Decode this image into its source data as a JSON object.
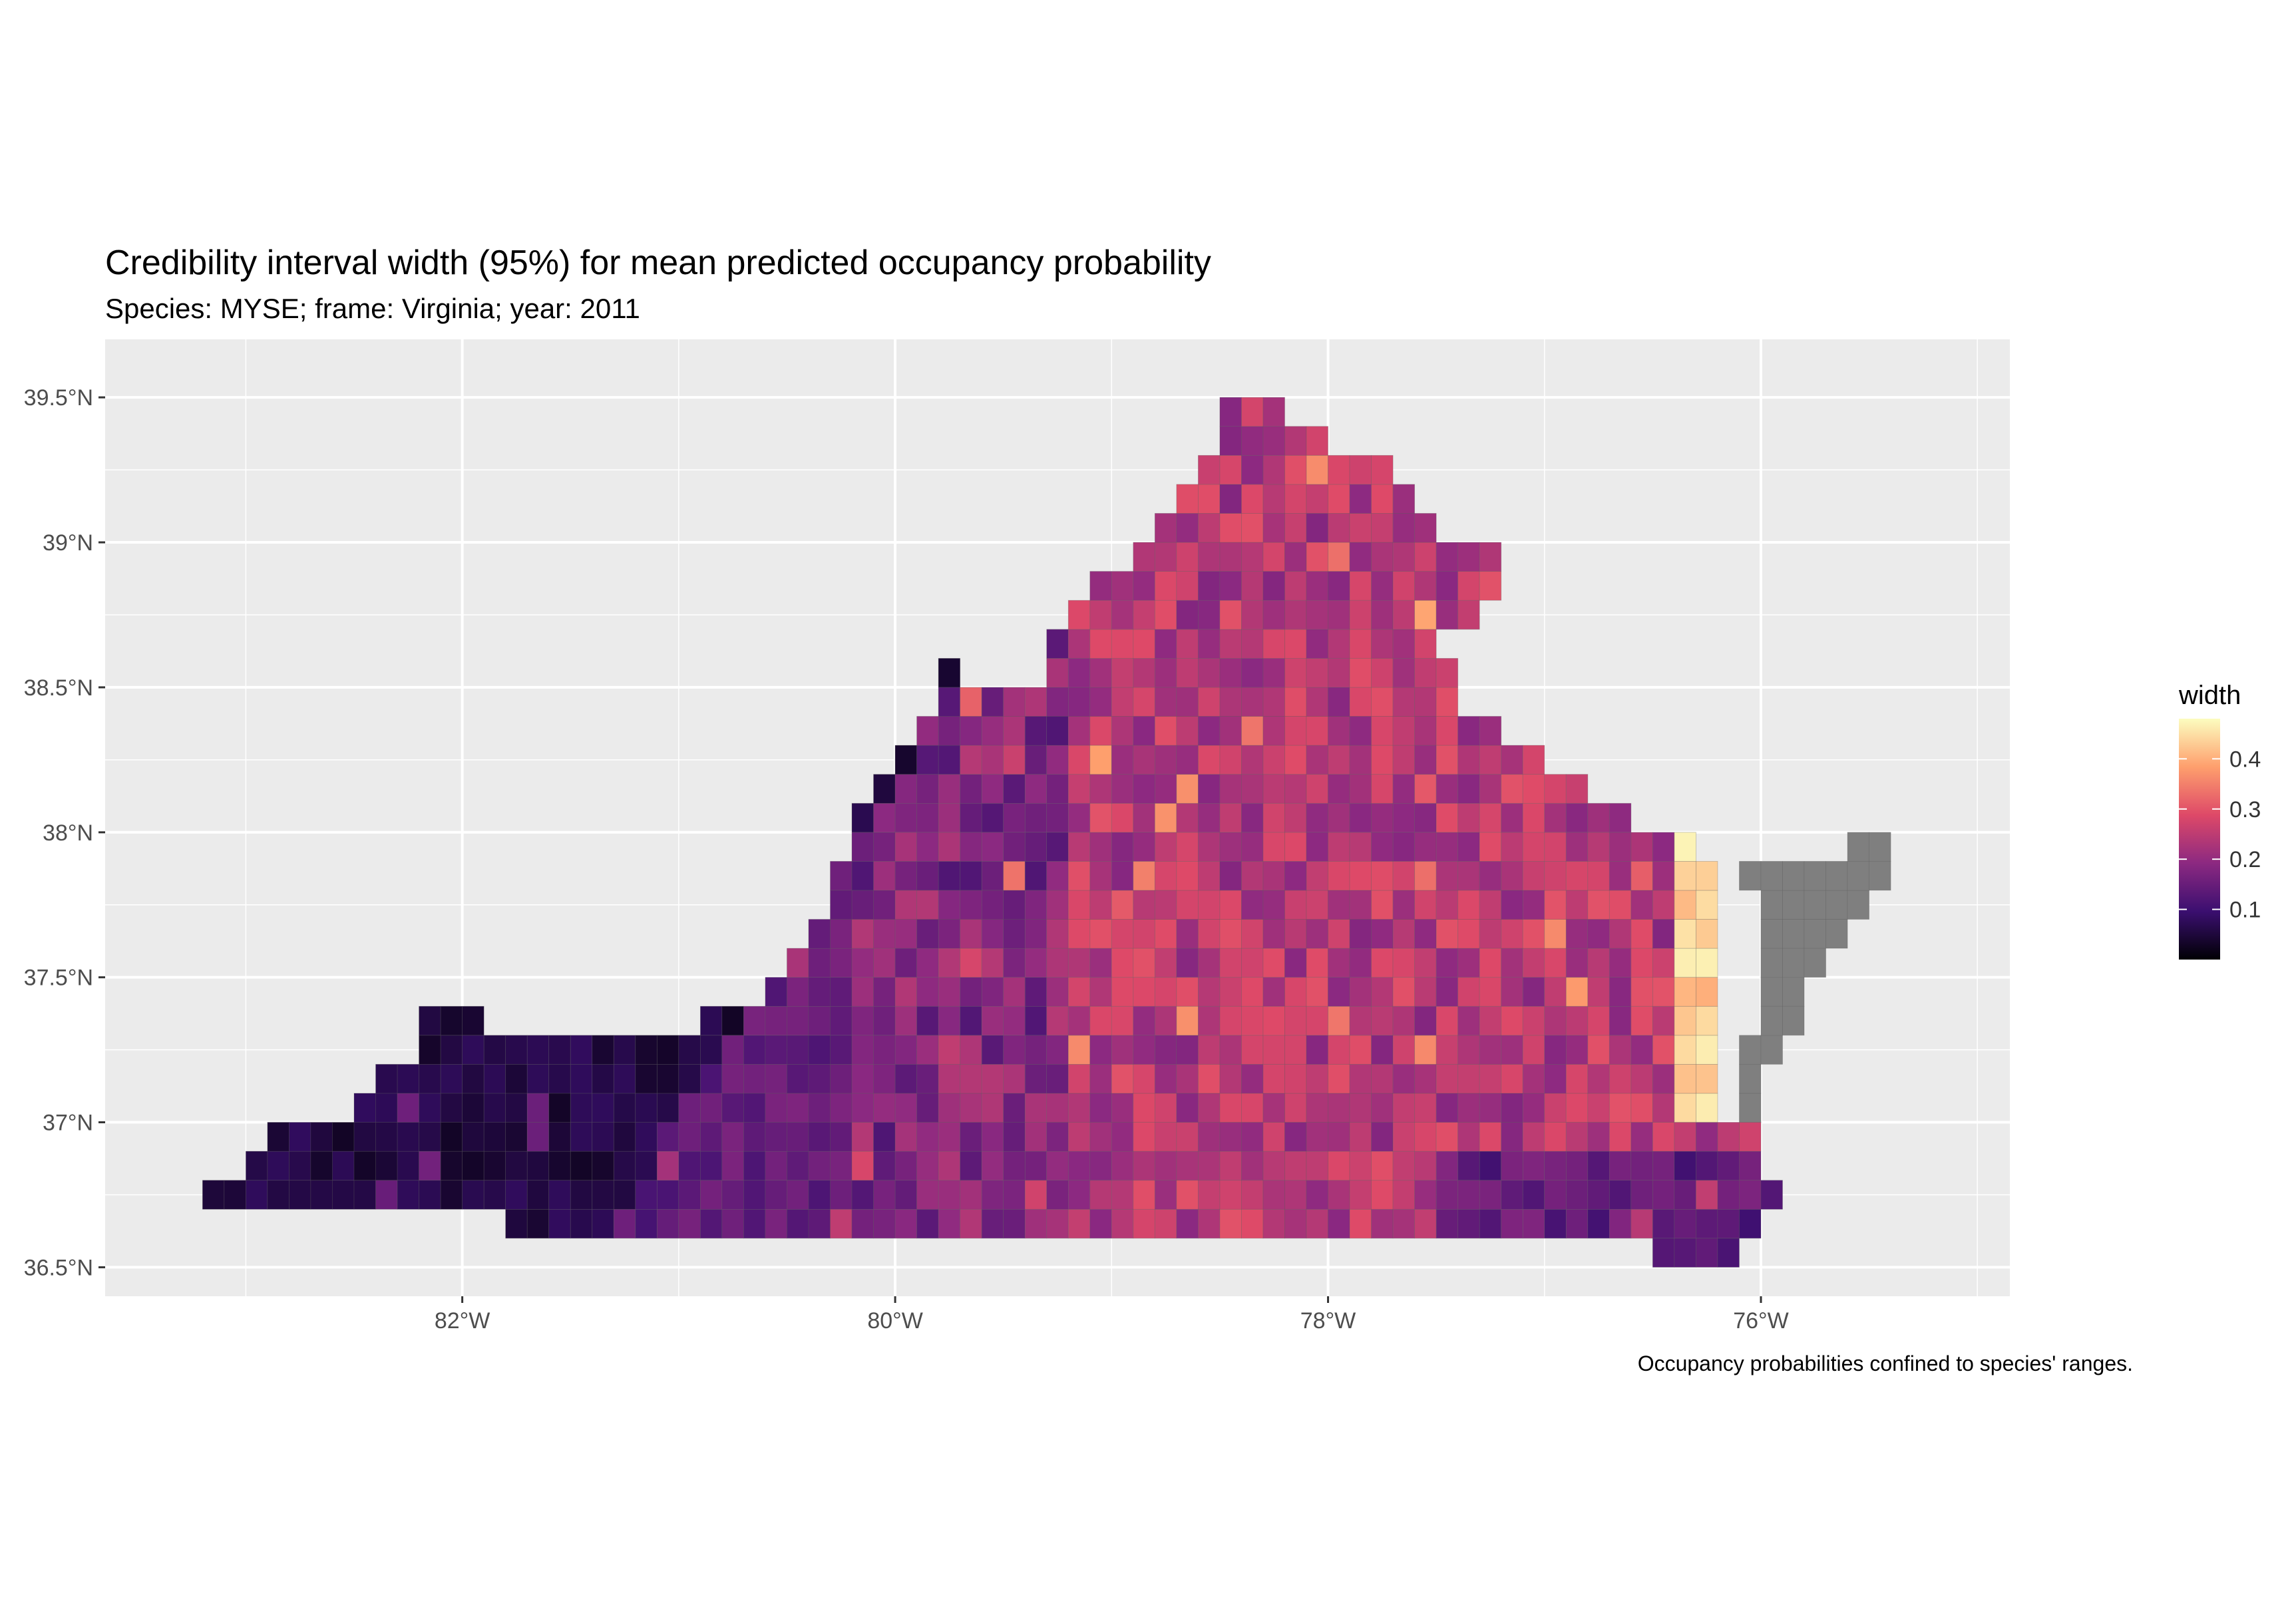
{
  "map": {
    "title": "Credibility interval width (95%) for mean predicted occupancy probability",
    "subtitle": "Species: MYSE; frame: Virginia; year: 2011",
    "caption": "Occupancy probabilities confined to species' ranges.",
    "x_ticks": [
      {
        "value": -82,
        "label": "82°W"
      },
      {
        "value": -80,
        "label": "80°W"
      },
      {
        "value": -78,
        "label": "78°W"
      },
      {
        "value": -76,
        "label": "76°W"
      }
    ],
    "y_ticks": [
      {
        "value": 39.5,
        "label": "39.5°N"
      },
      {
        "value": 39.0,
        "label": "39°N"
      },
      {
        "value": 38.5,
        "label": "38.5°N"
      },
      {
        "value": 38.0,
        "label": "38°N"
      },
      {
        "value": 37.5,
        "label": "37.5°N"
      },
      {
        "value": 37.0,
        "label": "37°N"
      },
      {
        "value": 36.5,
        "label": "36.5°N"
      }
    ],
    "xlim": [
      -83.65,
      -74.85
    ],
    "ylim": [
      36.4,
      39.7
    ],
    "panel_color": "#ebebeb",
    "grid_color": "#ffffff",
    "na_color": "#7f7f7f"
  },
  "legend": {
    "title": "width",
    "ticks": [
      {
        "value": 0.1,
        "label": "0.1"
      },
      {
        "value": 0.2,
        "label": "0.2"
      },
      {
        "value": 0.3,
        "label": "0.3"
      },
      {
        "value": 0.4,
        "label": "0.4"
      }
    ],
    "range": [
      0.0,
      0.48
    ],
    "palette": "magma",
    "colors": [
      "#000004",
      "#3b0f70",
      "#8c2981",
      "#de4968",
      "#fe9f6d",
      "#fcfdbf"
    ]
  },
  "chart_data": {
    "type": "heatmap",
    "cell_size_deg": [
      0.1,
      0.1
    ],
    "value_label": "width",
    "outline_lonlat": [
      [
        -83.35,
        36.65
      ],
      [
        -82.8,
        36.7
      ],
      [
        -82.2,
        36.7
      ],
      [
        -81.6,
        36.62
      ],
      [
        -80.8,
        36.6
      ],
      [
        -80.0,
        36.58
      ],
      [
        -79.0,
        36.58
      ],
      [
        -78.0,
        36.58
      ],
      [
        -77.0,
        36.58
      ],
      [
        -76.45,
        36.55
      ],
      [
        -76.1,
        36.55
      ],
      [
        -75.9,
        36.7
      ],
      [
        -76.0,
        36.9
      ],
      [
        -76.15,
        37.05
      ],
      [
        -76.2,
        37.45
      ],
      [
        -76.25,
        37.85
      ],
      [
        -76.35,
        37.97
      ],
      [
        -76.75,
        38.1
      ],
      [
        -77.0,
        38.25
      ],
      [
        -77.2,
        38.35
      ],
      [
        -77.4,
        38.4
      ],
      [
        -77.45,
        38.65
      ],
      [
        -77.3,
        38.8
      ],
      [
        -77.1,
        38.9
      ],
      [
        -77.45,
        39.05
      ],
      [
        -77.7,
        39.25
      ],
      [
        -77.9,
        39.3
      ],
      [
        -78.05,
        39.35
      ],
      [
        -78.25,
        39.45
      ],
      [
        -78.35,
        39.55
      ],
      [
        -78.55,
        39.35
      ],
      [
        -78.75,
        39.1
      ],
      [
        -79.0,
        38.9
      ],
      [
        -79.2,
        38.75
      ],
      [
        -79.35,
        38.55
      ],
      [
        -79.55,
        38.45
      ],
      [
        -79.75,
        38.6
      ],
      [
        -79.85,
        38.4
      ],
      [
        -80.0,
        38.2
      ],
      [
        -80.15,
        38.05
      ],
      [
        -80.3,
        37.85
      ],
      [
        -80.4,
        37.65
      ],
      [
        -80.55,
        37.45
      ],
      [
        -80.9,
        37.35
      ],
      [
        -81.3,
        37.25
      ],
      [
        -81.75,
        37.3
      ],
      [
        -82.1,
        37.4
      ],
      [
        -82.25,
        37.25
      ],
      [
        -82.55,
        37.05
      ],
      [
        -82.85,
        36.95
      ],
      [
        -83.05,
        36.8
      ],
      [
        -83.35,
        36.7
      ]
    ],
    "eastern_shore_lonlat": [
      [
        -76.05,
        37.9
      ],
      [
        -75.35,
        37.98
      ],
      [
        -75.4,
        37.8
      ],
      [
        -75.7,
        37.6
      ],
      [
        -75.8,
        37.35
      ],
      [
        -75.95,
        37.15
      ],
      [
        -76.0,
        37.0
      ],
      [
        -76.1,
        37.05
      ],
      [
        -76.05,
        37.3
      ],
      [
        -75.95,
        37.55
      ],
      [
        -75.95,
        37.75
      ],
      [
        -76.1,
        37.85
      ]
    ],
    "value_model": {
      "northwest_ridge_dark": 0.03,
      "southwest_low": 0.08,
      "central_typical": 0.24,
      "coastal_high": 0.4,
      "maximum": 0.47
    },
    "missing_region": "Eastern Shore cells rendered grey (NA)"
  }
}
